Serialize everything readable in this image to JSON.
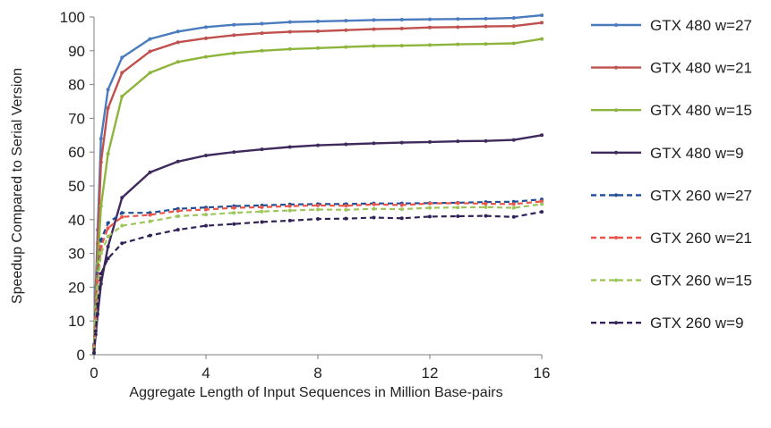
{
  "chart_data": {
    "type": "line",
    "title": "",
    "xlabel": "Aggregate Length of Input Sequences in Million Base-pairs",
    "ylabel": "Speedup Compared to Serial Version",
    "xlim": [
      0,
      16
    ],
    "ylim": [
      0,
      100
    ],
    "x_ticks": [
      0,
      4,
      8,
      12,
      16
    ],
    "y_ticks": [
      0,
      10,
      20,
      30,
      40,
      50,
      60,
      70,
      80,
      90,
      100
    ],
    "grid": false,
    "legend_position": "right",
    "x": [
      0.0,
      0.06,
      0.13,
      0.25,
      0.5,
      1,
      2,
      3,
      4,
      5,
      6,
      7,
      8,
      9,
      10,
      11,
      12,
      13,
      14,
      15,
      16
    ],
    "series": [
      {
        "name": "GTX 480 w=27",
        "color": "#4a7bbf",
        "dash": "solid",
        "values": [
          3,
          20,
          37,
          64,
          78.5,
          88,
          93.5,
          95.7,
          97,
          97.7,
          98,
          98.5,
          98.7,
          98.9,
          99.1,
          99.2,
          99.3,
          99.4,
          99.5,
          99.7,
          100.5
        ]
      },
      {
        "name": "GTX 480 w=21",
        "color": "#c0504d",
        "dash": "solid",
        "values": [
          2.5,
          17,
          33,
          57,
          73,
          83.5,
          89.8,
          92.5,
          93.7,
          94.6,
          95.2,
          95.6,
          95.8,
          96.1,
          96.4,
          96.6,
          96.9,
          97,
          97.2,
          97.3,
          98.3
        ]
      },
      {
        "name": "GTX 480 w=15",
        "color": "#8db53c",
        "dash": "solid",
        "values": [
          2,
          14,
          27,
          44,
          59.5,
          76.5,
          83.5,
          86.7,
          88.2,
          89.3,
          90,
          90.5,
          90.8,
          91.1,
          91.4,
          91.5,
          91.7,
          91.9,
          92,
          92.2,
          93.5
        ]
      },
      {
        "name": "GTX 480 w=9",
        "color": "#3e2a5c",
        "dash": "solid",
        "values": [
          1,
          6,
          12,
          21,
          32,
          46.5,
          54,
          57.2,
          59,
          60,
          60.8,
          61.5,
          62,
          62.3,
          62.6,
          62.8,
          63,
          63.2,
          63.3,
          63.6,
          65
        ]
      },
      {
        "name": "GTX 260 w=27",
        "color": "#1f4e96",
        "dash": "dashed",
        "values": [
          1.5,
          12,
          24,
          34,
          39,
          42,
          42,
          43.2,
          43.6,
          44,
          44.2,
          44.5,
          44.6,
          44.6,
          44.8,
          44.8,
          44.9,
          45,
          45.2,
          45.3,
          46
        ]
      },
      {
        "name": "GTX 260 w=21",
        "color": "#e8554b",
        "dash": "dashed",
        "values": [
          1.5,
          11,
          22,
          32,
          37.5,
          40.8,
          41.4,
          42.6,
          43,
          43.5,
          43.7,
          44,
          44.2,
          44.1,
          44.5,
          44.3,
          44.8,
          44.9,
          44.7,
          44.6,
          45.4
        ]
      },
      {
        "name": "GTX 260 w=15",
        "color": "#9dc65a",
        "dash": "dashed",
        "values": [
          1,
          10,
          20,
          30,
          35,
          38.2,
          39.5,
          41,
          41.5,
          42,
          42.4,
          42.7,
          43,
          42.9,
          43.2,
          43.1,
          43.5,
          43.6,
          43.7,
          43.5,
          44.6
        ]
      },
      {
        "name": "GTX 260 w=9",
        "color": "#312358",
        "dash": "dashed",
        "values": [
          0.5,
          7,
          15,
          24,
          28.5,
          33,
          35.3,
          37,
          38.2,
          38.7,
          39.3,
          39.7,
          40.2,
          40.3,
          40.6,
          40.4,
          40.9,
          41,
          41.1,
          40.8,
          42.3
        ]
      }
    ]
  }
}
